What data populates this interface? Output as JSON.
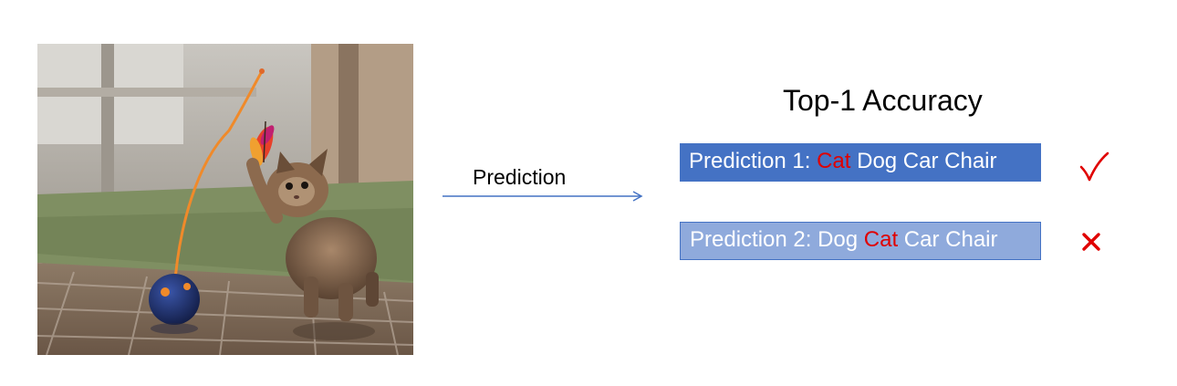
{
  "diagram": {
    "title": "Top-1 Accuracy",
    "arrow_label": "Prediction",
    "predictions": [
      {
        "prefix": "Prediction 1: ",
        "before": "",
        "highlight": "Cat",
        "after": " Dog Car Chair",
        "result_icon": "check-icon"
      },
      {
        "prefix": "Prediction 2: ",
        "before": "Dog ",
        "highlight": "Cat",
        "after": " Car Chair",
        "result_icon": "cross-icon"
      }
    ],
    "image_subject": "kitten playing with feather toy",
    "colors": {
      "box_primary": "#4472c4",
      "box_secondary": "#8faadc",
      "highlight": "#e00000",
      "arrow": "#4472c4"
    }
  }
}
